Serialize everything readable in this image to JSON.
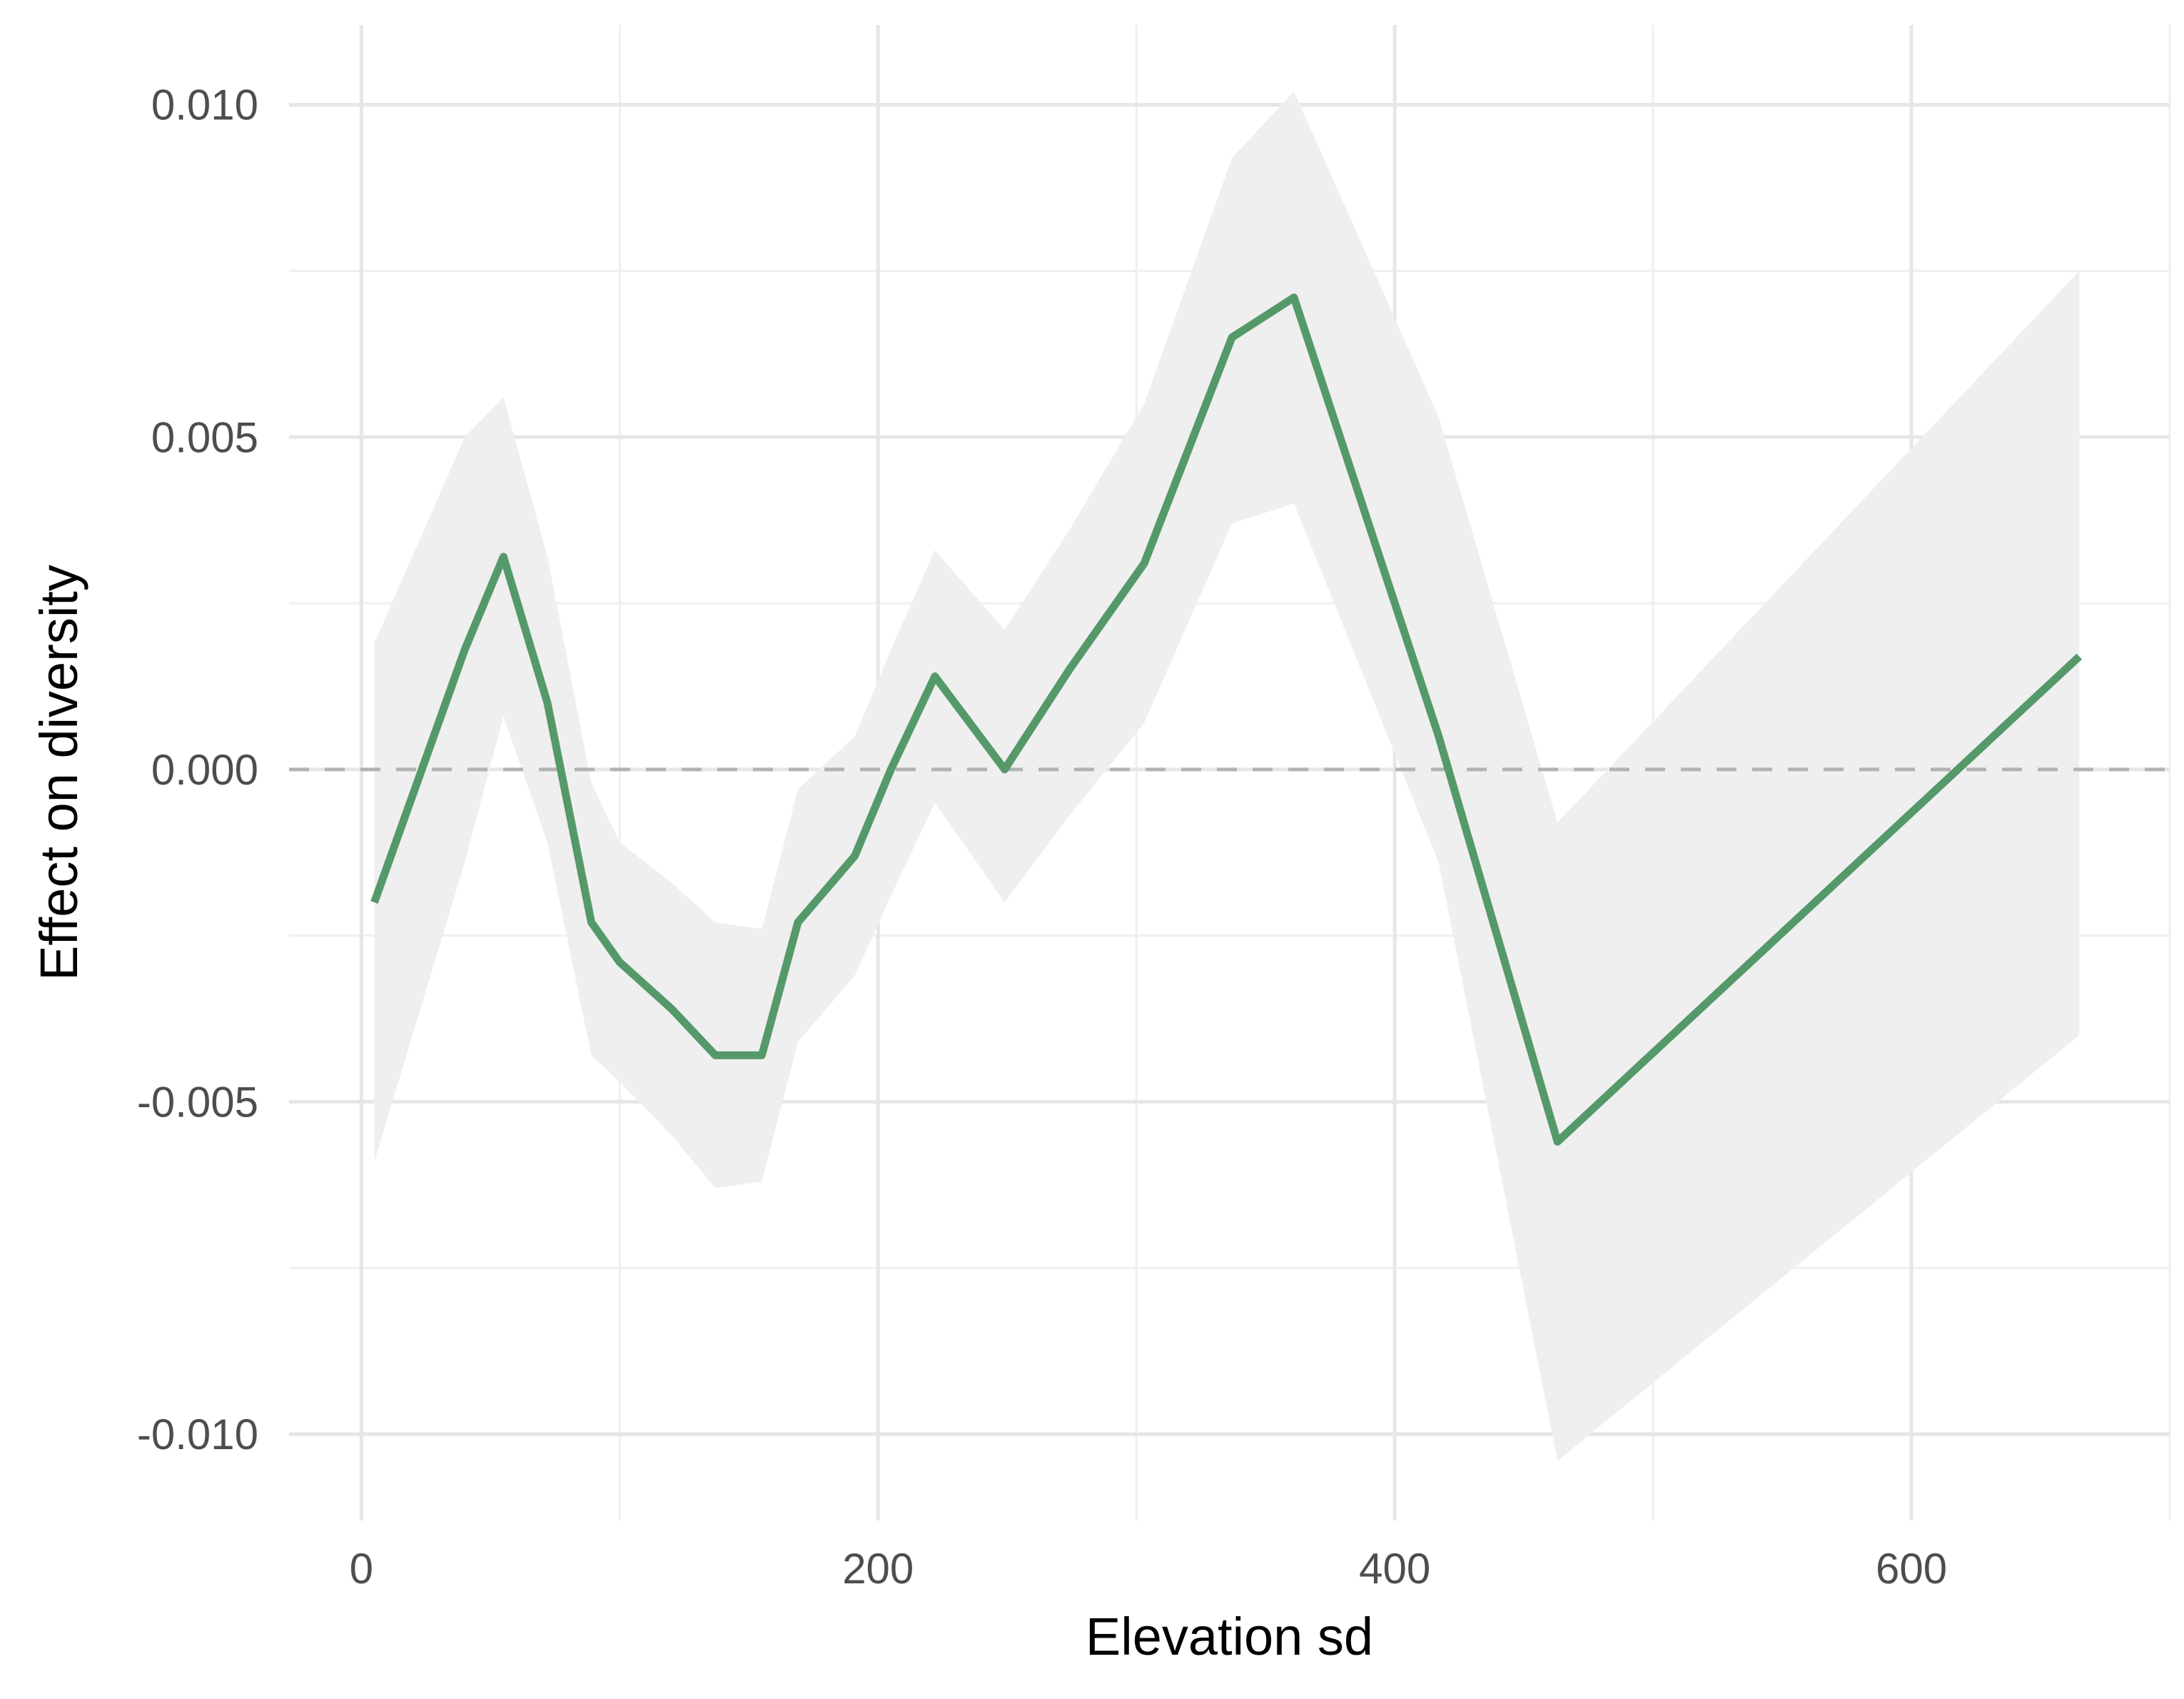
{
  "chart_data": {
    "type": "line",
    "title": "",
    "xlabel": "Elevation sd",
    "ylabel": "Effect on diversity",
    "xlim": [
      -28,
      700
    ],
    "ylim": [
      -0.0113,
      0.0112
    ],
    "x_ticks": [
      0,
      200,
      400,
      600
    ],
    "x_tick_labels": [
      "0",
      "200",
      "400",
      "600"
    ],
    "y_ticks": [
      -0.01,
      -0.005,
      0.0,
      0.005,
      0.01
    ],
    "y_tick_labels": [
      "-0.010",
      "-0.005",
      "0.000",
      "0.005",
      "0.010"
    ],
    "grid": true,
    "reference_line": {
      "y": 0.0,
      "style": "dashed"
    },
    "series": [
      {
        "x": [
          5,
          40,
          55,
          72,
          89,
          100,
          120,
          137,
          155,
          169,
          191,
          205,
          222,
          249,
          274,
          303,
          337,
          361,
          417,
          463,
          665
        ],
        "values": [
          -0.002,
          0.0018,
          0.0032,
          0.001,
          -0.0023,
          -0.0029,
          -0.0036,
          -0.0043,
          -0.0043,
          -0.0023,
          -0.0013,
          0.0,
          0.0014,
          0.0,
          0.0015,
          0.0031,
          0.0065,
          0.0071,
          0.0005,
          -0.0056,
          0.0017
        ],
        "lower": [
          -0.0059,
          -0.0014,
          0.0008,
          -0.0011,
          -0.0043,
          -0.0047,
          -0.0055,
          -0.0063,
          -0.0062,
          -0.0041,
          -0.0031,
          -0.0019,
          -0.0005,
          -0.002,
          -0.0007,
          0.0007,
          0.0037,
          0.004,
          -0.0014,
          -0.0104,
          -0.004
        ],
        "upper": [
          0.0019,
          0.005,
          0.0056,
          0.0032,
          -0.0002,
          -0.0011,
          -0.0017,
          -0.0023,
          -0.0024,
          -0.0003,
          0.0005,
          0.0018,
          0.0033,
          0.0021,
          0.0036,
          0.0055,
          0.0092,
          0.0102,
          0.0053,
          -0.0008,
          0.0075
        ]
      }
    ],
    "colors": {
      "line": "#55996a",
      "ribbon": "#efefef",
      "major_grid": "#e6e6e6",
      "minor_grid": "#efefef",
      "reference": "#b3b3b3"
    }
  }
}
